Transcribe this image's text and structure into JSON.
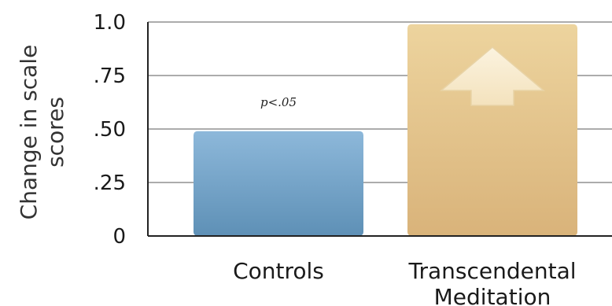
{
  "chart_data": {
    "type": "bar",
    "categories": [
      "Controls",
      "Transcendental Meditation"
    ],
    "category_lines": [
      [
        "Controls"
      ],
      [
        "Transcendental",
        "Meditation"
      ]
    ],
    "values": [
      0.49,
      0.99
    ],
    "ylabel_lines": [
      "Change in scale",
      "scores"
    ],
    "ytick_labels": [
      "1.0",
      ".75",
      ".50",
      ".25",
      "0"
    ],
    "ytick_values": [
      1.0,
      0.75,
      0.5,
      0.25,
      0
    ],
    "ylim": [
      0,
      1.0
    ],
    "grid": true,
    "annotation": "p<.05",
    "bar_colors": [
      "#8db8da",
      "#edd49e"
    ],
    "bar_colors_bottom": [
      "#5e90b6",
      "#d9b37a"
    ],
    "arrow_icon": "up-arrow-icon"
  }
}
